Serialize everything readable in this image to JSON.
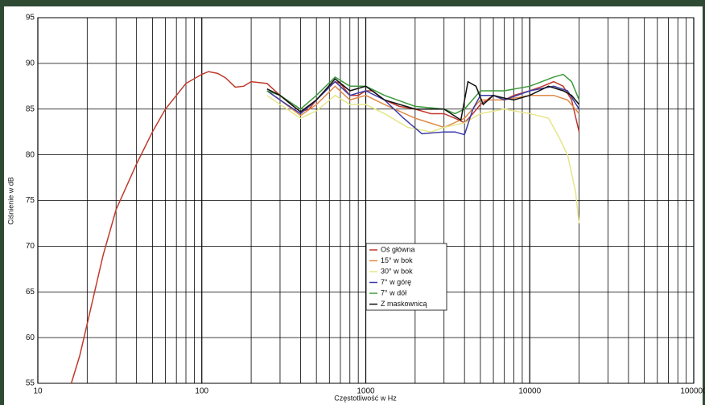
{
  "chart_data": {
    "type": "line",
    "log_x": true,
    "grid": true,
    "legend_position": "center",
    "x_label": "Częstotliwość w Hz",
    "y_label": "Ciśnienie w dB",
    "xlim": [
      10,
      100000
    ],
    "xticks": [
      10,
      100,
      1000,
      10000,
      100000
    ],
    "ylim": [
      55,
      95
    ],
    "yticks": [
      55,
      60,
      65,
      70,
      75,
      80,
      85,
      90,
      95
    ],
    "series": [
      {
        "name": "Oś główna",
        "color": "#c0392b",
        "x": [
          16,
          18,
          20,
          25,
          30,
          40,
          50,
          60,
          70,
          80,
          100,
          110,
          125,
          140,
          160,
          180,
          200,
          250,
          300,
          350,
          400,
          450,
          500,
          600,
          650,
          700,
          800,
          900,
          1000,
          1100,
          1300,
          1600,
          2000,
          2500,
          3000,
          3500,
          4000,
          4500,
          5000,
          6000,
          7000,
          8000,
          10000,
          12000,
          14000,
          16000,
          18000,
          20000
        ],
        "values": [
          55,
          58,
          61.5,
          69,
          74,
          79,
          82.5,
          85,
          86.5,
          87.8,
          88.8,
          89.1,
          88.9,
          88.4,
          87.4,
          87.5,
          88,
          87.8,
          86.5,
          85.5,
          84.7,
          85,
          86,
          87.5,
          88,
          87.8,
          86.5,
          86.5,
          87,
          87,
          86,
          85.3,
          85,
          84.5,
          84.5,
          84,
          83.5,
          84.5,
          85.5,
          86.5,
          86,
          86.5,
          87,
          87.5,
          88,
          87.5,
          86,
          82.5
        ]
      },
      {
        "name": "15° w bok",
        "color": "#e08a4a",
        "x": [
          250,
          300,
          400,
          500,
          650,
          800,
          1000,
          1300,
          2000,
          3000,
          4000,
          5000,
          7000,
          10000,
          14000,
          17000,
          20000
        ],
        "values": [
          87,
          86,
          84.3,
          85.5,
          87.5,
          86,
          86.5,
          85.5,
          84,
          83,
          84,
          86,
          86,
          86.5,
          86.5,
          86,
          84.5
        ]
      },
      {
        "name": "30° w bok",
        "color": "#e6e68a",
        "x": [
          250,
          300,
          400,
          500,
          650,
          800,
          1000,
          1300,
          1800,
          2500,
          3000,
          4000,
          5000,
          7000,
          10000,
          13000,
          15000,
          17000,
          19000,
          20000
        ],
        "values": [
          86.5,
          85.5,
          84,
          84.8,
          86.5,
          85.5,
          85.5,
          84.5,
          83,
          82.5,
          83,
          83.5,
          84.5,
          85,
          84.5,
          84,
          82,
          80,
          76,
          72.5
        ]
      },
      {
        "name": "7° w górę",
        "color": "#3a3aa8",
        "x": [
          250,
          300,
          400,
          500,
          650,
          800,
          1000,
          1300,
          1700,
          2200,
          3000,
          3500,
          4000,
          4500,
          5000,
          6000,
          7000,
          10000,
          14000,
          17000,
          20000
        ],
        "values": [
          87,
          86,
          84.5,
          86,
          88,
          86.5,
          87,
          86,
          84,
          82.3,
          82.5,
          82.5,
          82.2,
          85,
          86.5,
          86.5,
          86,
          87,
          87.5,
          87,
          85
        ]
      },
      {
        "name": "7° w dół",
        "color": "#3c9a3c",
        "x": [
          250,
          300,
          400,
          500,
          650,
          800,
          1000,
          1300,
          2000,
          3000,
          3500,
          4000,
          5000,
          7000,
          10000,
          14000,
          16000,
          18000,
          20000
        ],
        "values": [
          87,
          86.5,
          85,
          86.5,
          88.5,
          87.5,
          87.5,
          86.5,
          85.3,
          85,
          84.5,
          85,
          87,
          87,
          87.5,
          88.5,
          88.8,
          88,
          86
        ]
      },
      {
        "name": "Z maskownicą",
        "color": "#111111",
        "x": [
          250,
          300,
          400,
          500,
          650,
          800,
          1000,
          1300,
          2000,
          3000,
          3800,
          4200,
          4700,
          5200,
          6000,
          7000,
          8000,
          10000,
          13000,
          16000,
          18000,
          20000
        ],
        "values": [
          87.2,
          86.5,
          84.7,
          86,
          88.3,
          87,
          87.5,
          86,
          85,
          85,
          83.8,
          88,
          87.5,
          85.5,
          86.5,
          86.2,
          86,
          86.5,
          87.5,
          87,
          86.5,
          85.5
        ]
      }
    ]
  }
}
